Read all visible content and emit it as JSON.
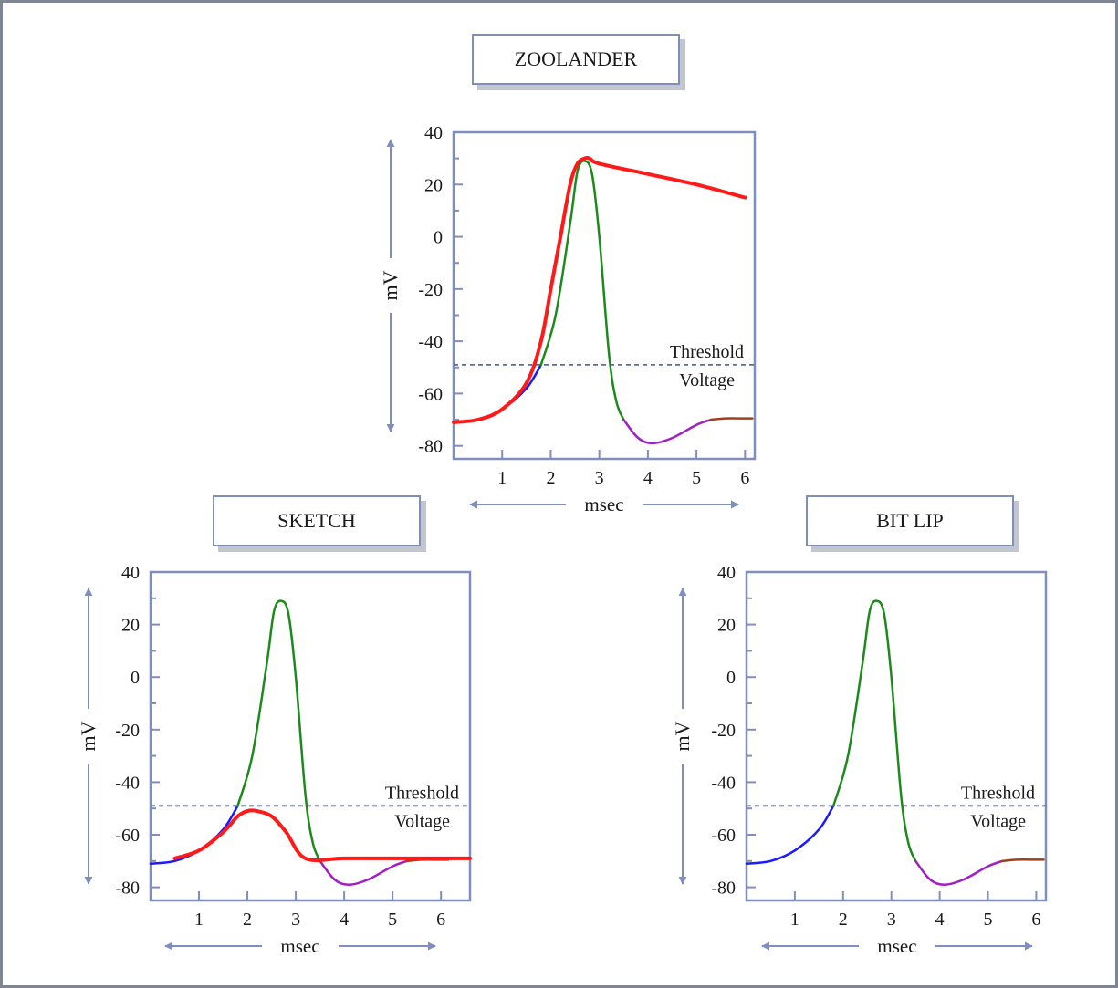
{
  "chart_data": [
    {
      "type": "line",
      "title": "ZOOLANDER",
      "xlabel": "msec",
      "ylabel": "mV",
      "xlim": [
        0,
        6.2
      ],
      "ylim": [
        -85,
        40
      ],
      "xticks": [
        1,
        2,
        3,
        4,
        5,
        6
      ],
      "yticks": [
        40,
        20,
        0,
        -20,
        -40,
        -60,
        -80
      ],
      "threshold": {
        "value": -49,
        "label": [
          "Threshold",
          "Voltage"
        ]
      },
      "show_action_potential": true,
      "series": [
        {
          "color": "#ff1a1a",
          "width": 4,
          "x": [
            0,
            0.5,
            1.0,
            1.5,
            1.8,
            2.0,
            2.2,
            2.4,
            2.55,
            2.7,
            2.8,
            3.0,
            4.0,
            5.0,
            5.8,
            6.0
          ],
          "y": [
            -71,
            -70,
            -66,
            -56,
            -40,
            -20,
            0,
            20,
            28,
            30,
            30,
            28,
            24,
            20,
            16,
            15
          ]
        }
      ]
    },
    {
      "type": "line",
      "title": "SKETCH",
      "xlabel": "msec",
      "ylabel": "mV",
      "xlim": [
        0,
        6.6
      ],
      "ylim": [
        -85,
        40
      ],
      "xticks": [
        1,
        2,
        3,
        4,
        5,
        6
      ],
      "yticks": [
        40,
        20,
        0,
        -20,
        -40,
        -60,
        -80
      ],
      "threshold": {
        "value": -49,
        "label": [
          "Threshold",
          "Voltage"
        ]
      },
      "show_action_potential": true,
      "series": [
        {
          "color": "#ff1a1a",
          "width": 4,
          "x": [
            0.5,
            1.0,
            1.5,
            1.8,
            2.0,
            2.2,
            2.5,
            2.8,
            3.2,
            4.0,
            5.0,
            6.0,
            6.6
          ],
          "y": [
            -69,
            -66,
            -59,
            -53,
            -51,
            -51,
            -53,
            -59,
            -69,
            -69,
            -69,
            -69,
            -69
          ]
        }
      ]
    },
    {
      "type": "line",
      "title": "BIT LIP",
      "xlabel": "msec",
      "ylabel": "mV",
      "xlim": [
        0,
        6.2
      ],
      "ylim": [
        -85,
        40
      ],
      "xticks": [
        1,
        2,
        3,
        4,
        5,
        6
      ],
      "yticks": [
        40,
        20,
        0,
        -20,
        -40,
        -60,
        -80
      ],
      "threshold": {
        "value": -49,
        "label": [
          "Threshold",
          "Voltage"
        ]
      },
      "show_action_potential": true,
      "series": []
    }
  ],
  "action_potential": {
    "segments": [
      {
        "color": "#1a1aff",
        "x": [
          0,
          0.5,
          1.0,
          1.5,
          1.8
        ],
        "y": [
          -71,
          -70,
          -66,
          -58,
          -49
        ]
      },
      {
        "color": "#1c8a1c",
        "x": [
          1.8,
          2.1,
          2.4,
          2.55,
          2.7,
          2.85,
          3.0,
          3.2,
          3.35,
          3.5
        ],
        "y": [
          -49,
          -30,
          5,
          25,
          29,
          24,
          0,
          -45,
          -63,
          -70
        ]
      },
      {
        "color": "#a020c0",
        "x": [
          3.5,
          3.8,
          4.1,
          4.5,
          5.0,
          5.3
        ],
        "y": [
          -70,
          -77,
          -79,
          -77,
          -72,
          -70
        ]
      },
      {
        "color": "#a0401a",
        "x": [
          5.3,
          5.6,
          6.0,
          6.15
        ],
        "y": [
          -70,
          -69.5,
          -69.5,
          -69.5
        ]
      }
    ]
  },
  "colors": {
    "axis": "#7f8fbd",
    "threshold": "#5a6c9c"
  }
}
